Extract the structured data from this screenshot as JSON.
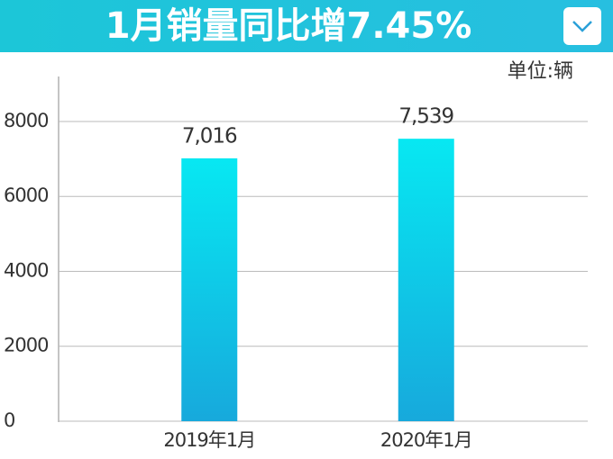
{
  "chart_data": {
    "type": "bar",
    "title": "1月销量同比增7.45%",
    "unit_label": "单位:辆",
    "categories": [
      "2019年1月",
      "2020年1月"
    ],
    "values": [
      7016,
      7539
    ],
    "value_labels": [
      "7,016",
      "7,539"
    ],
    "ylim": [
      0,
      9200
    ],
    "yticks": [
      0,
      2000,
      4000,
      6000,
      8000
    ],
    "grid": true
  }
}
